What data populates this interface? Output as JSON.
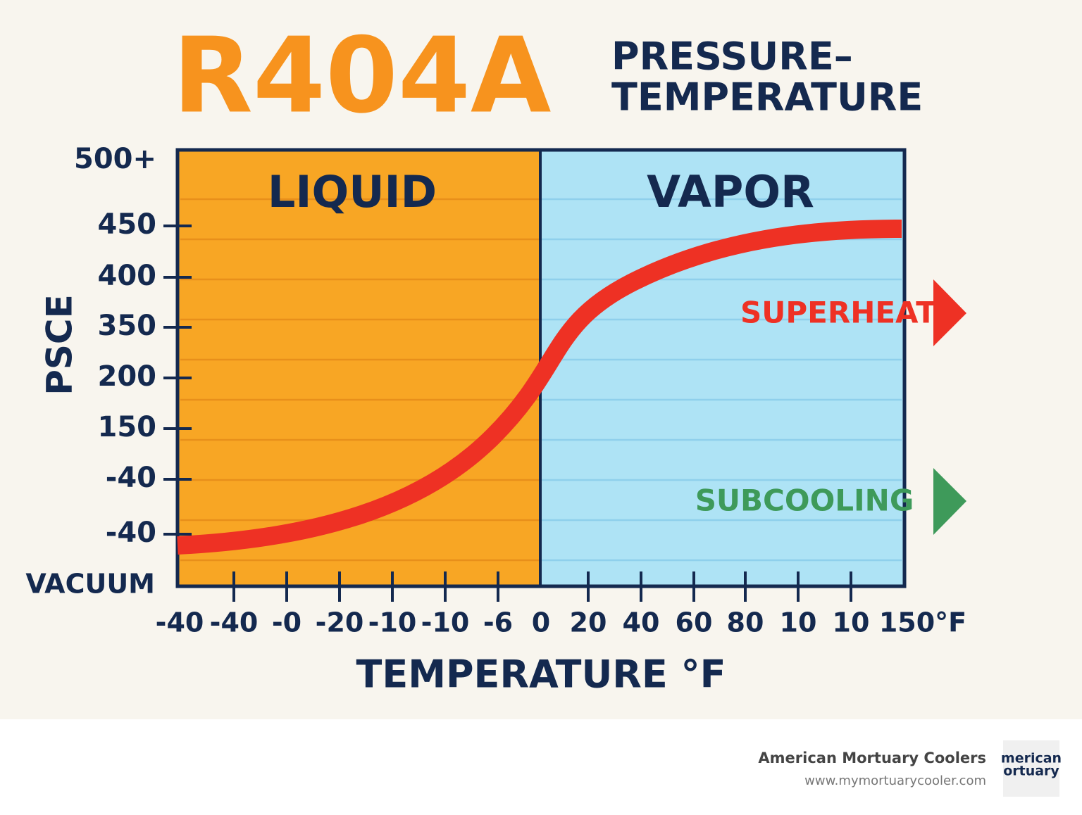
{
  "title": "R404A",
  "subtitle_lines": [
    "PRESSURE–",
    "TEMPERATURE"
  ],
  "regions": [
    "LIQUID",
    "VAPOR"
  ],
  "y_axis": {
    "title": "PSCE",
    "labels": [
      "500+",
      "450",
      "400",
      "350",
      "200",
      "150",
      "-40",
      "-40",
      "VACUUM"
    ]
  },
  "x_axis": {
    "title": "TEMPERATURE °F",
    "labels": [
      "-40",
      "-40",
      "-0",
      "-20",
      "-10",
      "-10",
      "-6",
      "0",
      "20",
      "40",
      "60",
      "80",
      "10",
      "10",
      "150°F"
    ]
  },
  "annotations": [
    "SUPERHEAT",
    "SUBCOOLING"
  ],
  "footer": {
    "company": "American Mortuary Coolers",
    "url": "www.mymortuarycooler.com",
    "logo_lines": [
      "merican",
      "ortuary"
    ]
  }
}
